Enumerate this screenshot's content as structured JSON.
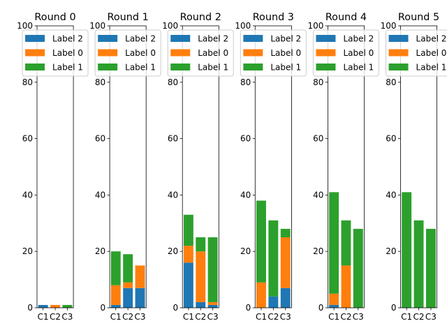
{
  "chart_data": {
    "type": "bar",
    "stacked": true,
    "ylim": [
      0,
      100
    ],
    "yticks": [
      0,
      20,
      40,
      60,
      80,
      100
    ],
    "categories": [
      "C1",
      "C2",
      "C3"
    ],
    "legend": {
      "placement": "top",
      "entries": [
        {
          "name": "Label 2",
          "series_index": 2
        },
        {
          "name": "Label 0",
          "series_index": 0
        },
        {
          "name": "Label 1",
          "series_index": 1
        }
      ]
    },
    "series_colors": [
      "#ff7f0e",
      "#2ca02c",
      "#1f77b4"
    ],
    "panels": [
      {
        "title": "Round 0",
        "series": [
          {
            "name": "Label 0",
            "values": [
              0,
              1,
              0
            ]
          },
          {
            "name": "Label 1",
            "values": [
              0,
              0,
              1
            ]
          },
          {
            "name": "Label 2",
            "values": [
              1,
              0,
              0
            ]
          }
        ]
      },
      {
        "title": "Round 1",
        "series": [
          {
            "name": "Label 0",
            "values": [
              7,
              2,
              8
            ]
          },
          {
            "name": "Label 1",
            "values": [
              12,
              10,
              0
            ]
          },
          {
            "name": "Label 2",
            "values": [
              1,
              7,
              7
            ]
          }
        ]
      },
      {
        "title": "Round 2",
        "series": [
          {
            "name": "Label 0",
            "values": [
              6,
              18,
              1
            ]
          },
          {
            "name": "Label 1",
            "values": [
              11,
              5,
              23
            ]
          },
          {
            "name": "Label 2",
            "values": [
              16,
              2,
              1
            ]
          }
        ]
      },
      {
        "title": "Round 3",
        "series": [
          {
            "name": "Label 0",
            "values": [
              9,
              0,
              18
            ]
          },
          {
            "name": "Label 1",
            "values": [
              29,
              27,
              3
            ]
          },
          {
            "name": "Label 2",
            "values": [
              0,
              4,
              7
            ]
          }
        ]
      },
      {
        "title": "Round 4",
        "series": [
          {
            "name": "Label 0",
            "values": [
              4,
              15,
              0
            ]
          },
          {
            "name": "Label 1",
            "values": [
              36,
              16,
              28
            ]
          },
          {
            "name": "Label 2",
            "values": [
              1,
              0,
              0
            ]
          }
        ]
      },
      {
        "title": "Round 5",
        "series": [
          {
            "name": "Label 0",
            "values": [
              0,
              0,
              0
            ]
          },
          {
            "name": "Label 1",
            "values": [
              41,
              31,
              28
            ]
          },
          {
            "name": "Label 2",
            "values": [
              0,
              0,
              0
            ]
          }
        ]
      }
    ]
  }
}
